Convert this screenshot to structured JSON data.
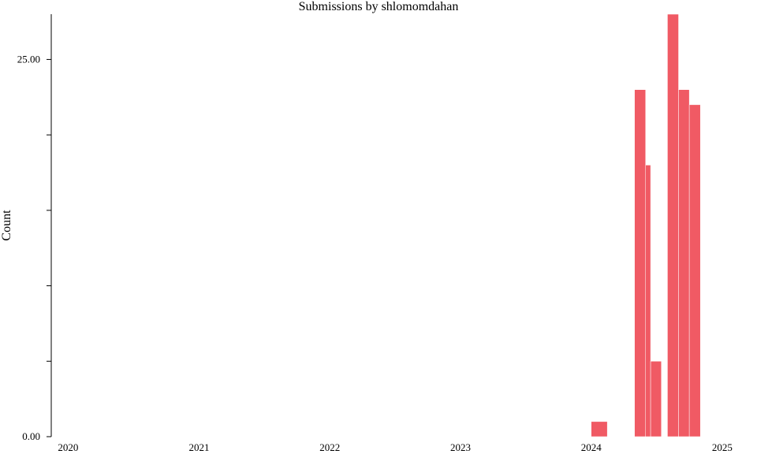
{
  "chart_data": {
    "type": "bar",
    "title": "Submissions by shlomomdahan",
    "xlabel": "",
    "ylabel": "Count",
    "color": "#f05a64",
    "xlim": [
      "2019-11-15",
      "2025-01-10"
    ],
    "ylim": [
      0,
      28
    ],
    "y_ticks": [
      {
        "value": 0,
        "label": "0.00"
      },
      {
        "value": 5,
        "label": ""
      },
      {
        "value": 10,
        "label": ""
      },
      {
        "value": 15,
        "label": ""
      },
      {
        "value": 20,
        "label": ""
      },
      {
        "value": 25,
        "label": "25.00"
      }
    ],
    "x_ticks": [
      {
        "date": "2020-01-01",
        "label": "2020"
      },
      {
        "date": "2021-01-01",
        "label": "2021"
      },
      {
        "date": "2022-01-01",
        "label": "2022"
      },
      {
        "date": "2023-01-01",
        "label": "2023"
      },
      {
        "date": "2024-01-01",
        "label": "2024"
      },
      {
        "date": "2025-01-01",
        "label": "2025"
      }
    ],
    "bins": [
      {
        "start": "2024-01-01",
        "end": "2024-02-15",
        "value": 1
      },
      {
        "start": "2024-05-01",
        "end": "2024-06-01",
        "value": 23
      },
      {
        "start": "2024-06-01",
        "end": "2024-06-15",
        "value": 18
      },
      {
        "start": "2024-06-15",
        "end": "2024-07-15",
        "value": 5
      },
      {
        "start": "2024-08-01",
        "end": "2024-09-01",
        "value": 28
      },
      {
        "start": "2024-09-01",
        "end": "2024-10-01",
        "value": 23
      },
      {
        "start": "2024-10-01",
        "end": "2024-11-01",
        "value": 22
      }
    ],
    "grid": false,
    "legend": "none"
  }
}
